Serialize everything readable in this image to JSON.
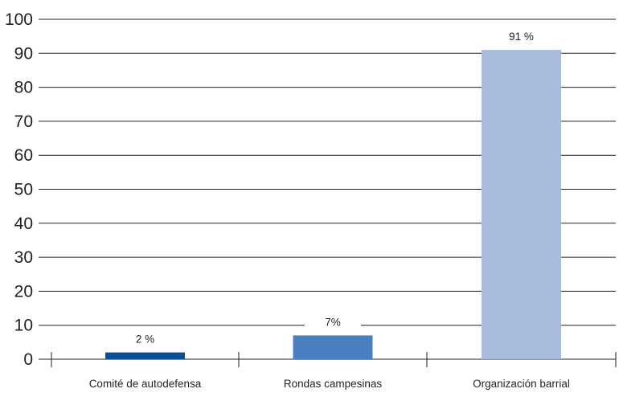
{
  "chart_data": {
    "type": "bar",
    "title": "",
    "xlabel": "",
    "ylabel": "",
    "categories": [
      "Comité de autodefensa",
      "Rondas campesinas",
      "Organización barrial"
    ],
    "values": [
      2,
      7,
      91
    ],
    "data_labels": [
      "2 %",
      "7%",
      "91 %"
    ],
    "colors": [
      "#0d4f96",
      "#4a7fc1",
      "#a8bbdc"
    ],
    "ylim": [
      0,
      100
    ],
    "yticks": [
      "0",
      "10",
      "20",
      "30",
      "40",
      "50",
      "60",
      "70",
      "80",
      "90",
      "100"
    ],
    "grid": true,
    "legend": "none"
  }
}
